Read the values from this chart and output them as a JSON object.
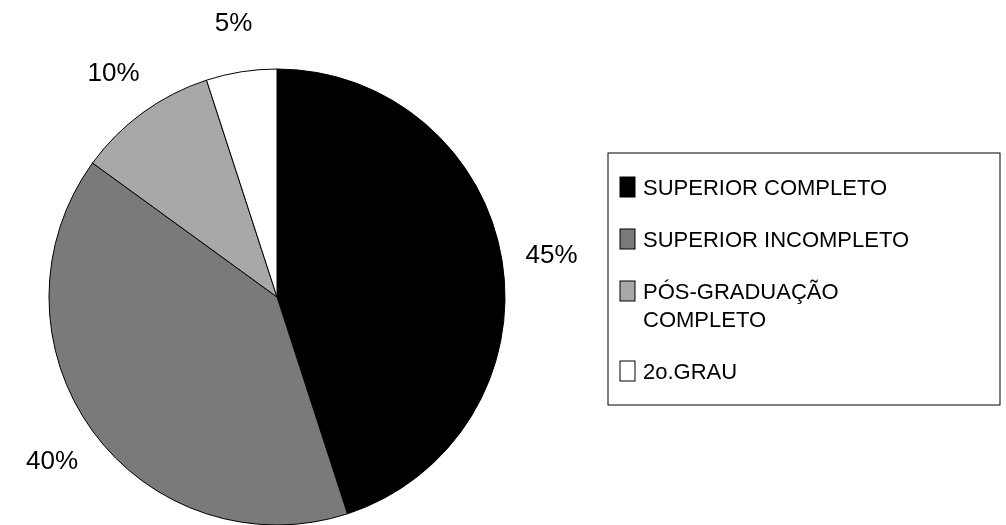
{
  "chart_data": {
    "type": "pie",
    "categories": [
      "SUPERIOR COMPLETO",
      "SUPERIOR INCOMPLETO",
      "PÓS-GRADUAÇÃO COMPLETO",
      "2o.GRAU"
    ],
    "values": [
      45,
      40,
      10,
      5
    ],
    "value_labels": [
      "45%",
      "40%",
      "10%",
      "5%"
    ],
    "colors": [
      "#000000",
      "#7a7a7a",
      "#a8a8a8",
      "#ffffff"
    ],
    "legend": "right"
  }
}
